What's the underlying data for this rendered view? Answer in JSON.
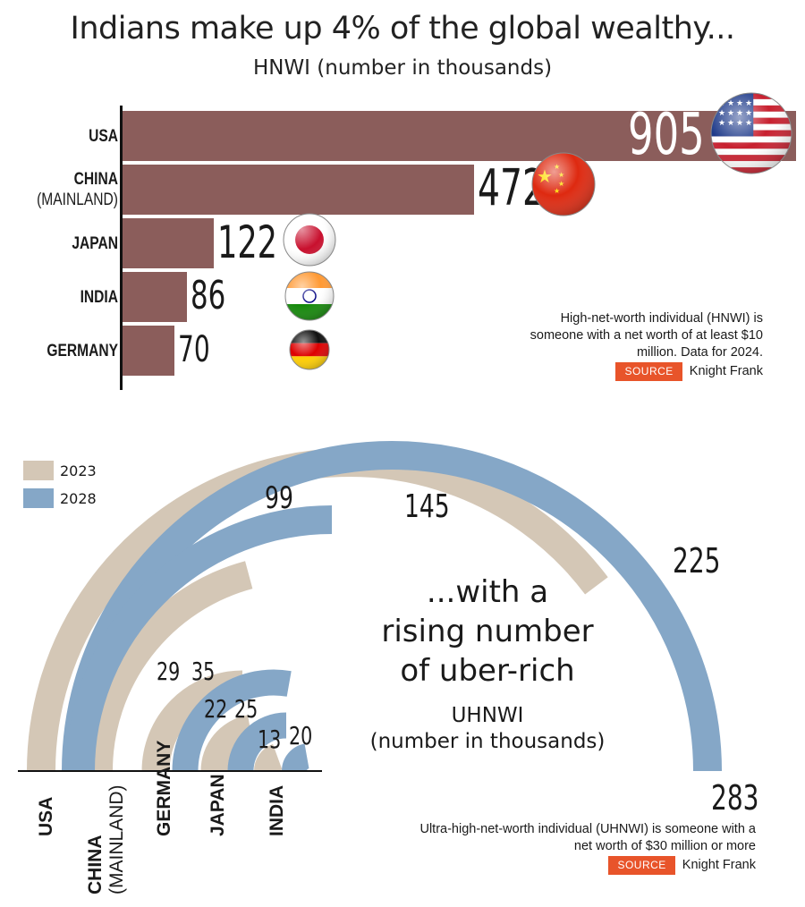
{
  "title": "Indians make up 4% of the global wealthy...",
  "subtitle": "HNWI (number in thousands)",
  "hnwi_note": [
    "High-net-worth individual (HNWI)  is",
    "someone with a net worth of at least $10",
    "million. Data for 2024."
  ],
  "source_label": "SOURCE",
  "source_name": "Knight Frank",
  "uhnwi_heading": [
    "...with a",
    "rising number",
    "of uber-rich"
  ],
  "uhnwi_subtitle": [
    "UHNWI",
    "(number in thousands)"
  ],
  "uhnwi_note": [
    "Ultra-high-net-worth individual (UHNWI) is someone with a",
    "net worth of $30 million or more"
  ],
  "chart_data": [
    {
      "type": "bar",
      "orientation": "horizontal",
      "title": "Indians make up 4% of the global wealthy...",
      "subtitle": "HNWI (number in thousands)",
      "categories": [
        "USA",
        "CHINA (MAINLAND)",
        "JAPAN",
        "INDIA",
        "GERMANY"
      ],
      "category_lines": [
        [
          "USA"
        ],
        [
          "CHINA",
          "(MAINLAND)"
        ],
        [
          "JAPAN"
        ],
        [
          "INDIA"
        ],
        [
          "GERMANY"
        ]
      ],
      "values": [
        905,
        472,
        122,
        86,
        70
      ],
      "flags": [
        "usa-flag-icon",
        "china-flag-icon",
        "japan-flag-icon",
        "india-flag-icon",
        "germany-flag-icon"
      ],
      "bar_color": "#8b5d5b",
      "xlim": [
        0,
        1000
      ]
    },
    {
      "type": "bar",
      "subtype": "radial-arc",
      "title": "...with a rising number of uber-rich",
      "subtitle": "UHNWI (number in thousands)",
      "categories": [
        "USA",
        "CHINA (MAINLAND)",
        "GERMANY",
        "JAPAN",
        "INDIA"
      ],
      "category_lines": [
        [
          "USA"
        ],
        [
          "CHINA",
          "(MAINLAND)"
        ],
        [
          "GERMANY"
        ],
        [
          "JAPAN"
        ],
        [
          "INDIA"
        ]
      ],
      "series": [
        {
          "name": "2023",
          "values": [
            225,
            99,
            29,
            22,
            13
          ],
          "color": "#d4c7b6"
        },
        {
          "name": "2028",
          "values": [
            283,
            145,
            35,
            25,
            20
          ],
          "color": "#85a7c7"
        }
      ],
      "legend": "top-left"
    }
  ],
  "colors": {
    "bar": "#8b5d5b",
    "y2023": "#d4c7b6",
    "y2028": "#85a7c7",
    "source_badge": "#e8542a"
  }
}
